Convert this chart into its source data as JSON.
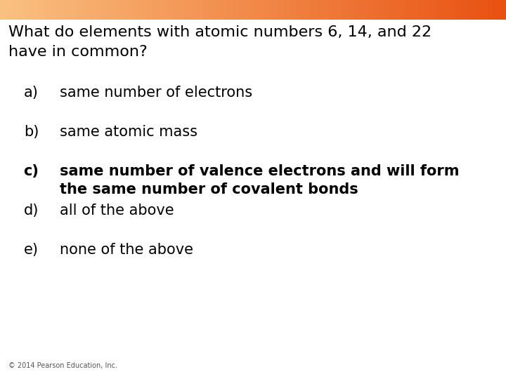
{
  "title_line1": "What do elements with atomic numbers 6, 14, and 22",
  "title_line2": "have in common?",
  "options": [
    {
      "label": "a)",
      "text": "same number of electrons",
      "bold": false
    },
    {
      "label": "b)",
      "text": "same atomic mass",
      "bold": false
    },
    {
      "label": "c)",
      "text": "same number of valence electrons and will form\nthe same number of covalent bonds",
      "bold": true
    },
    {
      "label": "d)",
      "text": "all of the above",
      "bold": false
    },
    {
      "label": "e)",
      "text": "none of the above",
      "bold": false
    }
  ],
  "footer": "© 2014 Pearson Education, Inc.",
  "bg_color": "#ffffff",
  "title_fontsize": 16,
  "option_fontsize": 15,
  "footer_fontsize": 7
}
